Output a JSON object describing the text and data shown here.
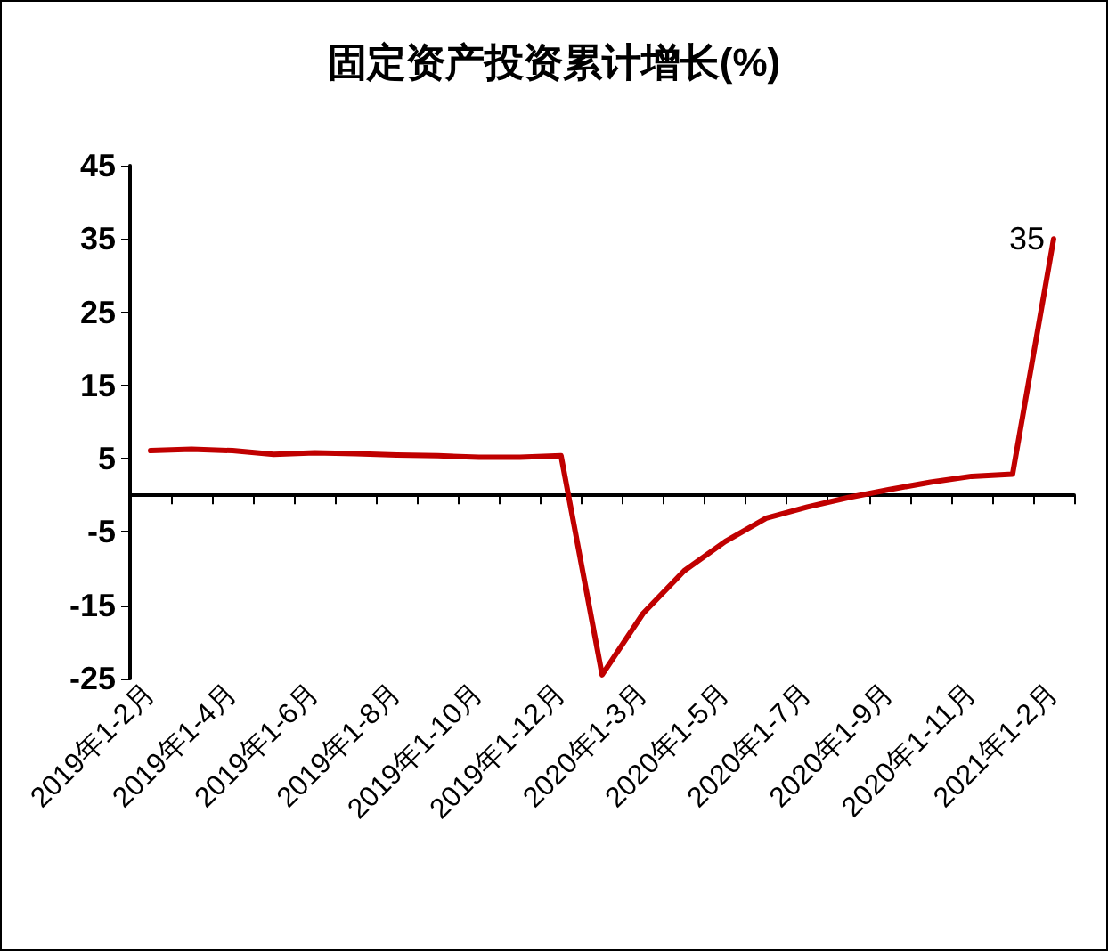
{
  "chart_data": {
    "type": "line",
    "title": "固定资产投资累计增长(%)",
    "categories": [
      "2019年1-2月",
      null,
      "2019年1-4月",
      null,
      "2019年1-6月",
      null,
      "2019年1-8月",
      null,
      "2019年1-10月",
      null,
      "2019年1-12月",
      null,
      "2020年1-3月",
      null,
      "2020年1-5月",
      null,
      "2020年1-7月",
      null,
      "2020年1-9月",
      null,
      "2020年1-11月",
      null,
      "2021年1-2月"
    ],
    "series": [
      {
        "color": "#c00000",
        "values": [
          6.1,
          6.3,
          6.1,
          5.6,
          5.8,
          5.7,
          5.5,
          5.4,
          5.2,
          5.2,
          5.4,
          -24.5,
          -16.1,
          -10.3,
          -6.3,
          -3.1,
          -1.6,
          -0.3,
          0.8,
          1.8,
          2.6,
          2.9,
          35
        ],
        "value_labels": [
          null,
          null,
          null,
          null,
          null,
          null,
          null,
          null,
          null,
          null,
          null,
          null,
          null,
          null,
          null,
          null,
          null,
          null,
          null,
          null,
          null,
          null,
          "35"
        ]
      }
    ],
    "ylim": [
      -25,
      45
    ],
    "yticks": [
      -25,
      -15,
      -5,
      5,
      15,
      25,
      35,
      45
    ],
    "grid": false,
    "marker": "none",
    "line_style": "solid"
  }
}
